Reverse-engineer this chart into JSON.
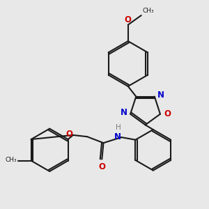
{
  "background_color": "#e8e8e8",
  "bond_color": "#1a1a1a",
  "n_color": "#0000cc",
  "o_color": "#cc0000",
  "h_color": "#7a7a7a",
  "line_width": 1.5,
  "dbo": 0.055,
  "figsize": [
    3.0,
    3.0
  ],
  "dpi": 100,
  "xlim": [
    0.0,
    6.5
  ],
  "ylim": [
    0.2,
    6.8
  ]
}
